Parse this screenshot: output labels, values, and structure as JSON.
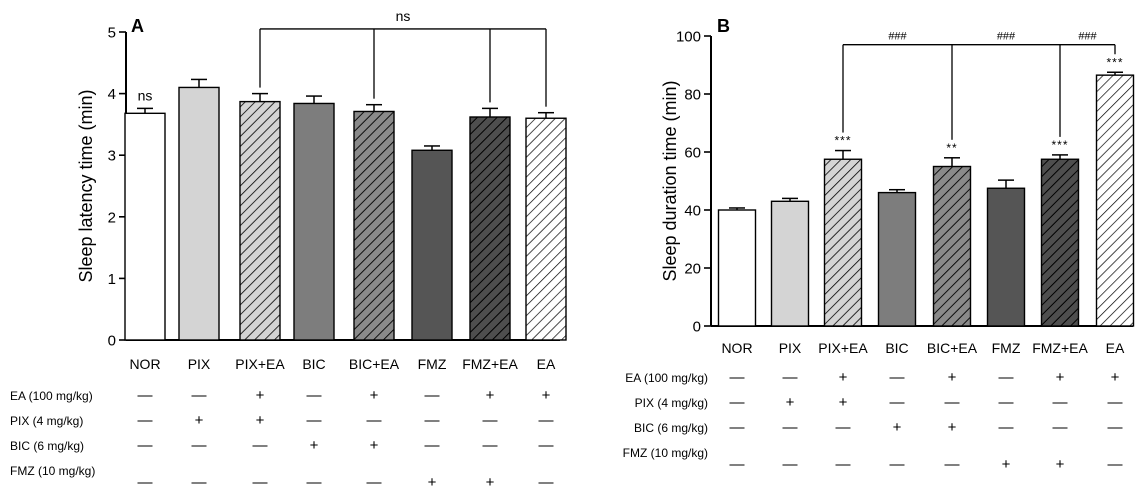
{
  "colors": {
    "nor": "#ffffff",
    "pix": "#d4d4d4",
    "bic": "#7d7d7d",
    "fmz": "#555555",
    "hatch_pix_ea": "#d4d4d4",
    "hatch_bic_ea": "#8a8a8a",
    "hatch_fmz_ea": "#4e4e4e",
    "hatch_ea": "#ffffff",
    "line": "#000000"
  },
  "treatment_rows": [
    {
      "label": "EA (100 mg/kg)",
      "signs": [
        "—",
        "—",
        "+",
        "—",
        "+",
        "—",
        "+",
        "+"
      ]
    },
    {
      "label": "PIX (4 mg/kg)",
      "signs": [
        "—",
        "+",
        "+",
        "—",
        "—",
        "—",
        "—",
        "—"
      ]
    },
    {
      "label": "BIC (6 mg/kg)",
      "signs": [
        "—",
        "—",
        "—",
        "+",
        "+",
        "—",
        "—",
        "—"
      ]
    },
    {
      "label": "FMZ (10 mg/kg)",
      "signs": [
        "—",
        "—",
        "—",
        "—",
        "—",
        "+",
        "+",
        "—"
      ]
    }
  ],
  "chart_data": [
    {
      "panel": "A",
      "type": "bar",
      "ylabel": "Sleep latency time (min)",
      "ylim": [
        0,
        5
      ],
      "yticks": [
        "0",
        "1",
        "2",
        "3",
        "4",
        "5"
      ],
      "categories": [
        "NOR",
        "PIX",
        "PIX+EA",
        "BIC",
        "BIC+EA",
        "FMZ",
        "FMZ+EA",
        "EA"
      ],
      "values": [
        3.68,
        4.1,
        3.87,
        3.84,
        3.71,
        3.08,
        3.62,
        3.6
      ],
      "errors": [
        0.08,
        0.13,
        0.13,
        0.12,
        0.11,
        0.07,
        0.14,
        0.09
      ],
      "fills": [
        "nor",
        "pix",
        "hatch_pix_ea",
        "bic",
        "hatch_bic_ea",
        "fmz",
        "hatch_fmz_ea",
        "hatch_ea"
      ],
      "annotations": [
        {
          "text": "ns",
          "bar": 0
        }
      ],
      "bracket": {
        "text": "ns",
        "bars": [
          2,
          4,
          6,
          7
        ],
        "y": 5.05
      }
    },
    {
      "panel": "B",
      "type": "bar",
      "ylabel": "Sleep  duration time (min)",
      "ylim": [
        0,
        100
      ],
      "yticks": [
        "0",
        "20",
        "40",
        "60",
        "80",
        "100"
      ],
      "categories": [
        "NOR",
        "PIX",
        "PIX+EA",
        "BIC",
        "BIC+EA",
        "FMZ",
        "FMZ+EA",
        "EA"
      ],
      "values": [
        40,
        43,
        57.5,
        46,
        55,
        47.5,
        57.5,
        86.5
      ],
      "errors": [
        0.7,
        1.0,
        3.0,
        1.0,
        3.0,
        2.8,
        1.5,
        1.0
      ],
      "fills": [
        "nor",
        "pix",
        "hatch_pix_ea",
        "bic",
        "hatch_bic_ea",
        "fmz",
        "hatch_fmz_ea",
        "hatch_ea"
      ],
      "annotations": [
        {
          "text": "***",
          "bar": 2
        },
        {
          "text": "**",
          "bar": 4
        },
        {
          "text": "***",
          "bar": 6
        },
        {
          "text": "***",
          "bar": 7
        }
      ],
      "hash_bracket": {
        "bars": [
          2,
          4,
          6,
          7
        ],
        "y": 97,
        "texts": [
          "###",
          "###",
          "###"
        ]
      }
    }
  ]
}
